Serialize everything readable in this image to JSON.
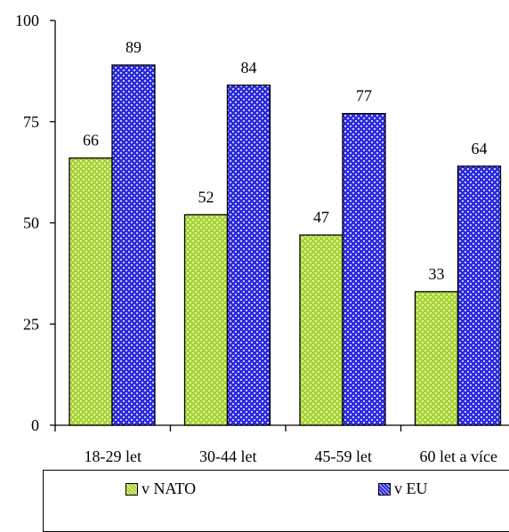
{
  "chart_data": {
    "type": "bar",
    "categories": [
      "18-29 let",
      "30-44 let",
      "45-59 let",
      "60 let a více"
    ],
    "series": [
      {
        "name": "v NATO",
        "values": [
          66,
          52,
          47,
          33
        ],
        "color": "#9acd32"
      },
      {
        "name": "v EU",
        "values": [
          89,
          84,
          77,
          64
        ],
        "color": "#3333cc"
      }
    ],
    "ylim": [
      0,
      100
    ],
    "yticks": [
      0,
      25,
      50,
      75,
      100
    ],
    "grid": false,
    "legend_position": "bottom",
    "data_labels": true
  }
}
